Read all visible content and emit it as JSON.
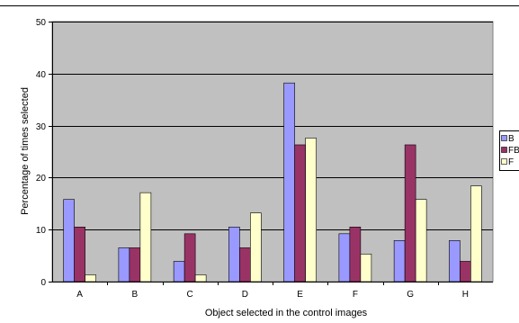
{
  "chart_data": {
    "type": "bar",
    "title": "",
    "xlabel": "Object selected in the control images",
    "ylabel": "Percentage of times selected",
    "ylim": [
      0,
      50
    ],
    "yticks": [
      0,
      10,
      20,
      30,
      40,
      50
    ],
    "grid": true,
    "legend_position": "right",
    "categories": [
      "A",
      "B",
      "C",
      "D",
      "E",
      "F",
      "G",
      "H"
    ],
    "series": [
      {
        "name": "B",
        "color": "#9999ff",
        "values": [
          15.8,
          6.5,
          3.9,
          10.5,
          38.2,
          9.2,
          7.9,
          7.9
        ]
      },
      {
        "name": "FB",
        "color": "#993366",
        "values": [
          10.5,
          6.5,
          9.2,
          6.5,
          26.3,
          10.5,
          26.3,
          3.9
        ]
      },
      {
        "name": "F",
        "color": "#ffffcc",
        "values": [
          1.3,
          17.1,
          1.3,
          13.2,
          27.6,
          5.3,
          15.8,
          18.4
        ]
      }
    ],
    "plot_background": "#c0c0c0"
  }
}
